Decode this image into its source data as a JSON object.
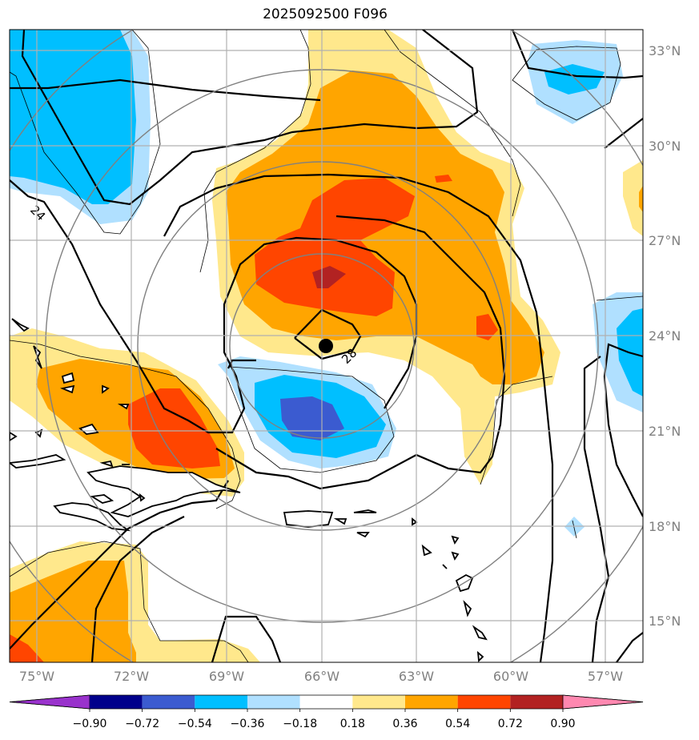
{
  "title": "2025092500 F096",
  "map": {
    "lon_ticks": [
      "75°W",
      "72°W",
      "69°W",
      "66°W",
      "63°W",
      "60°W",
      "57°W"
    ],
    "lat_ticks": [
      "33°N",
      "30°N",
      "27°N",
      "24°N",
      "21°N",
      "18°N",
      "15°N"
    ],
    "contour_labels": [
      "24",
      "28"
    ],
    "storm_center": {
      "lon": "65.9°W",
      "lat": "23.7°N"
    }
  },
  "colorbar": {
    "labels": [
      "−0.90",
      "−0.72",
      "−0.54",
      "−0.36",
      "−0.18",
      "0.18",
      "0.36",
      "0.54",
      "0.72",
      "0.90"
    ],
    "colors": [
      "#9932cc",
      "#00008b",
      "#3b5bd0",
      "#00bfff",
      "#b0e0ff",
      "#ffffff",
      "#ffe88c",
      "#ffa500",
      "#ff4500",
      "#b22222",
      "#ff88b0"
    ]
  }
}
